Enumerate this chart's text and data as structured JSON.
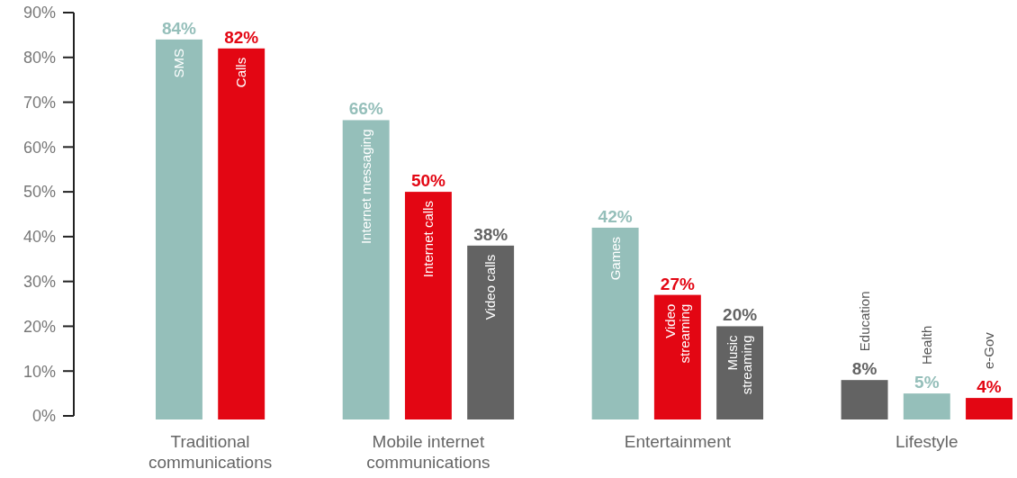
{
  "chart_data": {
    "type": "bar",
    "categories": [
      "SMS",
      "Calls",
      null,
      "Internet messaging",
      "Internet calls",
      "Video calls",
      null,
      "Games",
      "Video streaming",
      "Music streaming",
      null,
      "Education",
      "Health",
      "e-Gov"
    ],
    "values": [
      84,
      82,
      null,
      66,
      50,
      38,
      null,
      42,
      27,
      20,
      null,
      8,
      5,
      4
    ],
    "colors": [
      "#95bfba",
      "#e30613",
      null,
      "#95bfba",
      "#e30613",
      "#636363",
      null,
      "#95bfba",
      "#e30613",
      "#636363",
      null,
      "#636363",
      "#95bfba",
      "#e30613"
    ],
    "value_labels": [
      "84%",
      "82%",
      null,
      "66%",
      "50%",
      "38%",
      null,
      "42%",
      "27%",
      "20%",
      null,
      "8%",
      "5%",
      "4%"
    ],
    "ylim": [
      0,
      90
    ],
    "yticks": [
      {
        "value": 0,
        "label": "0%"
      },
      {
        "value": 10,
        "label": "10%"
      },
      {
        "value": 20,
        "label": "20%"
      },
      {
        "value": 30,
        "label": "30%"
      },
      {
        "value": 40,
        "label": "40%"
      },
      {
        "value": 50,
        "label": "50%"
      },
      {
        "value": 60,
        "label": "60%"
      },
      {
        "value": 70,
        "label": "70%"
      },
      {
        "value": 80,
        "label": "80%"
      },
      {
        "value": 90,
        "label": "90%"
      }
    ],
    "annotations": [
      "Traditional communications",
      "Mobile internet communications",
      "Entertainment",
      "Lifestyle"
    ]
  }
}
